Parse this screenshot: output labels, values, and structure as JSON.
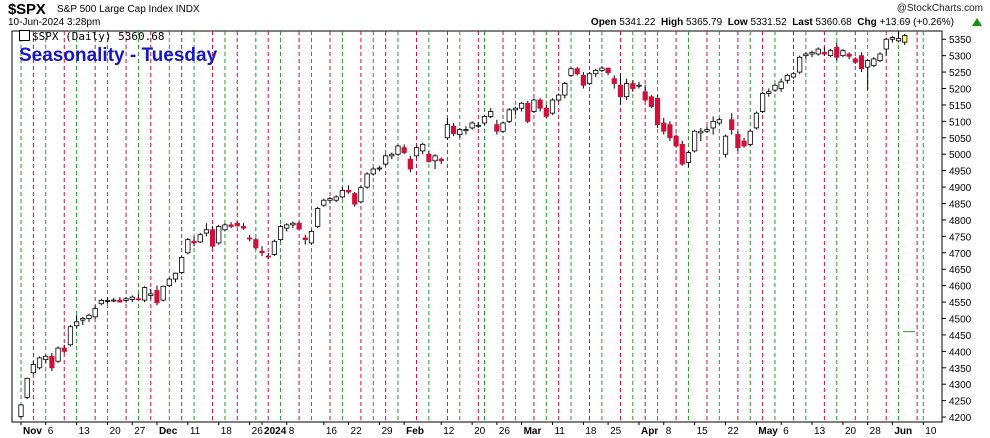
{
  "header": {
    "ticker": "$SPX",
    "description": "S&P 500 Large Cap Index",
    "exchange": "INDX",
    "brand": "@StockCharts.com",
    "date": "10-Jun-2024 3:28pm",
    "open_label": "Open",
    "open": "5341.22",
    "high_label": "High",
    "high": "5365.79",
    "low_label": "Low",
    "low": "5331.52",
    "last_label": "Last",
    "last": "5360.68",
    "chg_label": "Chg",
    "chg": "+13.69 (+0.26%)"
  },
  "legend": {
    "label": "$SPX (Daily) 5360.68"
  },
  "overlay_title": "Seasonality - Tuesday",
  "colors": {
    "up": "#ffffff",
    "down": "#d0103a",
    "outline": "#000000",
    "green_line": "#2a9a2a",
    "red_line": "#d0103a",
    "title": "#1515c8",
    "highlight": "#ffff66"
  },
  "chart_data": {
    "type": "candlestick",
    "title": "Seasonality - Tuesday",
    "series_name": "$SPX (Daily)",
    "y_ticks": [
      4200,
      4250,
      4300,
      4350,
      4400,
      4450,
      4500,
      4550,
      4600,
      4650,
      4700,
      4750,
      4800,
      4850,
      4900,
      4950,
      5000,
      5050,
      5100,
      5150,
      5200,
      5250,
      5300,
      5350
    ],
    "ylim": [
      4185,
      5375
    ],
    "x_labels": [
      "Nov",
      "6",
      "13",
      "20",
      "27",
      "Dec",
      "11",
      "18",
      "26",
      "2024",
      "8",
      "16",
      "22",
      "29",
      "Feb",
      "12",
      "20",
      "26",
      "Mar",
      "11",
      "18",
      "25",
      "Apr",
      "8",
      "15",
      "22",
      "May",
      "6",
      "13",
      "20",
      "28",
      "Jun",
      "10"
    ],
    "x_label_bold": [
      "Nov",
      "Dec",
      "2024",
      "Feb",
      "Mar",
      "Apr",
      "May",
      "Jun"
    ],
    "x_label_days": [
      0,
      4,
      9,
      14,
      18,
      22,
      27,
      32,
      37,
      39,
      43,
      49,
      53,
      58,
      62,
      68,
      73,
      77,
      81,
      86,
      91,
      95,
      100,
      104,
      109,
      114,
      119,
      123,
      128,
      133,
      137,
      141,
      146
    ],
    "green_dashed_days": [
      0,
      4,
      9,
      14,
      19,
      24,
      28,
      33,
      38,
      42,
      47,
      52,
      57,
      61,
      66,
      71,
      75,
      80,
      85,
      89,
      94,
      99,
      103,
      108,
      113,
      118,
      122,
      127,
      132,
      137,
      142,
      146
    ],
    "red_dashed_days": [
      2,
      7,
      12,
      17,
      21,
      26,
      31,
      35,
      40,
      45,
      50,
      55,
      59,
      64,
      69,
      74,
      78,
      83,
      87,
      92,
      97,
      101,
      106,
      111,
      116,
      120,
      125,
      130,
      135,
      140,
      145
    ],
    "candles": [
      {
        "o": 4202,
        "h": 4240,
        "l": 4195,
        "c": 4237
      },
      {
        "o": 4260,
        "h": 4320,
        "l": 4255,
        "c": 4318
      },
      {
        "o": 4335,
        "h": 4370,
        "l": 4330,
        "c": 4360
      },
      {
        "o": 4350,
        "h": 4385,
        "l": 4345,
        "c": 4380
      },
      {
        "o": 4375,
        "h": 4390,
        "l": 4365,
        "c": 4385
      },
      {
        "o": 4385,
        "h": 4395,
        "l": 4340,
        "c": 4350
      },
      {
        "o": 4370,
        "h": 4415,
        "l": 4365,
        "c": 4410
      },
      {
        "o": 4410,
        "h": 4420,
        "l": 4395,
        "c": 4400
      },
      {
        "o": 4420,
        "h": 4480,
        "l": 4415,
        "c": 4475
      },
      {
        "o": 4478,
        "h": 4510,
        "l": 4470,
        "c": 4490
      },
      {
        "o": 4495,
        "h": 4505,
        "l": 4480,
        "c": 4500
      },
      {
        "o": 4500,
        "h": 4515,
        "l": 4490,
        "c": 4510
      },
      {
        "o": 4505,
        "h": 4540,
        "l": 4500,
        "c": 4530
      },
      {
        "o": 4545,
        "h": 4560,
        "l": 4540,
        "c": 4555
      },
      {
        "o": 4555,
        "h": 4565,
        "l": 4545,
        "c": 4555
      },
      {
        "o": 4555,
        "h": 4562,
        "l": 4550,
        "c": 4556
      },
      {
        "o": 4556,
        "h": 4565,
        "l": 4549,
        "c": 4550
      },
      {
        "o": 4555,
        "h": 4565,
        "l": 4548,
        "c": 4560
      },
      {
        "o": 4558,
        "h": 4570,
        "l": 4550,
        "c": 4565
      },
      {
        "o": 4560,
        "h": 4575,
        "l": 4555,
        "c": 4557
      },
      {
        "o": 4556,
        "h": 4598,
        "l": 4550,
        "c": 4594
      },
      {
        "o": 4570,
        "h": 4590,
        "l": 4560,
        "c": 4575
      },
      {
        "o": 4585,
        "h": 4600,
        "l": 4540,
        "c": 4548
      },
      {
        "o": 4556,
        "h": 4600,
        "l": 4552,
        "c": 4598
      },
      {
        "o": 4600,
        "h": 4625,
        "l": 4595,
        "c": 4620
      },
      {
        "o": 4620,
        "h": 4640,
        "l": 4610,
        "c": 4638
      },
      {
        "o": 4640,
        "h": 4690,
        "l": 4635,
        "c": 4686
      },
      {
        "o": 4700,
        "h": 4745,
        "l": 4695,
        "c": 4740
      },
      {
        "o": 4735,
        "h": 4750,
        "l": 4720,
        "c": 4730
      },
      {
        "o": 4733,
        "h": 4760,
        "l": 4730,
        "c": 4755
      },
      {
        "o": 4760,
        "h": 4790,
        "l": 4750,
        "c": 4770
      },
      {
        "o": 4770,
        "h": 4782,
        "l": 4715,
        "c": 4720
      },
      {
        "o": 4730,
        "h": 4785,
        "l": 4725,
        "c": 4780
      },
      {
        "o": 4770,
        "h": 4790,
        "l": 4765,
        "c": 4785
      },
      {
        "o": 4785,
        "h": 4793,
        "l": 4775,
        "c": 4780
      },
      {
        "o": 4790,
        "h": 4795,
        "l": 4780,
        "c": 4782
      },
      {
        "o": 4780,
        "h": 4790,
        "l": 4770,
        "c": 4775
      },
      {
        "o": 4745,
        "h": 4755,
        "l": 4735,
        "c": 4742
      },
      {
        "o": 4740,
        "h": 4745,
        "l": 4710,
        "c": 4715
      },
      {
        "o": 4705,
        "h": 4720,
        "l": 4690,
        "c": 4700
      },
      {
        "o": 4690,
        "h": 4700,
        "l": 4680,
        "c": 4688
      },
      {
        "o": 4695,
        "h": 4740,
        "l": 4690,
        "c": 4735
      },
      {
        "o": 4740,
        "h": 4785,
        "l": 4735,
        "c": 4780
      },
      {
        "o": 4775,
        "h": 4790,
        "l": 4765,
        "c": 4785
      },
      {
        "o": 4785,
        "h": 4795,
        "l": 4775,
        "c": 4790
      },
      {
        "o": 4790,
        "h": 4795,
        "l": 4770,
        "c": 4772
      },
      {
        "o": 4745,
        "h": 4755,
        "l": 4725,
        "c": 4740
      },
      {
        "o": 4730,
        "h": 4770,
        "l": 4725,
        "c": 4765
      },
      {
        "o": 4780,
        "h": 4840,
        "l": 4775,
        "c": 4835
      },
      {
        "o": 4845,
        "h": 4865,
        "l": 4840,
        "c": 4860
      },
      {
        "o": 4860,
        "h": 4870,
        "l": 4850,
        "c": 4865
      },
      {
        "o": 4860,
        "h": 4875,
        "l": 4855,
        "c": 4870
      },
      {
        "o": 4870,
        "h": 4900,
        "l": 4865,
        "c": 4890
      },
      {
        "o": 4890,
        "h": 4905,
        "l": 4880,
        "c": 4885
      },
      {
        "o": 4880,
        "h": 4885,
        "l": 4840,
        "c": 4848
      },
      {
        "o": 4855,
        "h": 4905,
        "l": 4850,
        "c": 4898
      },
      {
        "o": 4900,
        "h": 4945,
        "l": 4895,
        "c": 4940
      },
      {
        "o": 4940,
        "h": 4960,
        "l": 4935,
        "c": 4955
      },
      {
        "o": 4955,
        "h": 4965,
        "l": 4948,
        "c": 4958
      },
      {
        "o": 4970,
        "h": 5000,
        "l": 4965,
        "c": 4995
      },
      {
        "o": 4995,
        "h": 5005,
        "l": 4985,
        "c": 5000
      },
      {
        "o": 5000,
        "h": 5030,
        "l": 4995,
        "c": 5025
      },
      {
        "o": 5020,
        "h": 5030,
        "l": 5000,
        "c": 5005
      },
      {
        "o": 4985,
        "h": 4995,
        "l": 4945,
        "c": 4955
      },
      {
        "o": 4995,
        "h": 5025,
        "l": 4990,
        "c": 5020
      },
      {
        "o": 5010,
        "h": 5035,
        "l": 5000,
        "c": 5030
      },
      {
        "o": 5000,
        "h": 5010,
        "l": 4975,
        "c": 4978
      },
      {
        "o": 4980,
        "h": 5000,
        "l": 4955,
        "c": 4995
      },
      {
        "o": 4985,
        "h": 4990,
        "l": 4970,
        "c": 4980
      },
      {
        "o": 5050,
        "h": 5110,
        "l": 5045,
        "c": 5090
      },
      {
        "o": 5085,
        "h": 5095,
        "l": 5055,
        "c": 5063
      },
      {
        "o": 5060,
        "h": 5080,
        "l": 5050,
        "c": 5075
      },
      {
        "o": 5075,
        "h": 5085,
        "l": 5060,
        "c": 5075
      },
      {
        "o": 5080,
        "h": 5100,
        "l": 5075,
        "c": 5095
      },
      {
        "o": 5085,
        "h": 5098,
        "l": 5080,
        "c": 5088
      },
      {
        "o": 5095,
        "h": 5120,
        "l": 5090,
        "c": 5115
      },
      {
        "o": 5115,
        "h": 5140,
        "l": 5110,
        "c": 5130
      },
      {
        "o": 5090,
        "h": 5105,
        "l": 5060,
        "c": 5070
      },
      {
        "o": 5070,
        "h": 5100,
        "l": 5065,
        "c": 5095
      },
      {
        "o": 5100,
        "h": 5140,
        "l": 5095,
        "c": 5135
      },
      {
        "o": 5135,
        "h": 5145,
        "l": 5120,
        "c": 5140
      },
      {
        "o": 5140,
        "h": 5160,
        "l": 5130,
        "c": 5155
      },
      {
        "o": 5155,
        "h": 5162,
        "l": 5095,
        "c": 5100
      },
      {
        "o": 5130,
        "h": 5170,
        "l": 5125,
        "c": 5165
      },
      {
        "o": 5165,
        "h": 5170,
        "l": 5130,
        "c": 5140
      },
      {
        "o": 5140,
        "h": 5150,
        "l": 5110,
        "c": 5115
      },
      {
        "o": 5125,
        "h": 5170,
        "l": 5120,
        "c": 5165
      },
      {
        "o": 5165,
        "h": 5185,
        "l": 5160,
        "c": 5180
      },
      {
        "o": 5180,
        "h": 5220,
        "l": 5170,
        "c": 5215
      },
      {
        "o": 5240,
        "h": 5265,
        "l": 5235,
        "c": 5260
      },
      {
        "o": 5260,
        "h": 5265,
        "l": 5240,
        "c": 5245
      },
      {
        "o": 5240,
        "h": 5250,
        "l": 5200,
        "c": 5210
      },
      {
        "o": 5215,
        "h": 5250,
        "l": 5210,
        "c": 5245
      },
      {
        "o": 5245,
        "h": 5260,
        "l": 5235,
        "c": 5255
      },
      {
        "o": 5255,
        "h": 5268,
        "l": 5250,
        "c": 5262
      },
      {
        "o": 5262,
        "h": 5264,
        "l": 5240,
        "c": 5248
      },
      {
        "o": 5230,
        "h": 5240,
        "l": 5200,
        "c": 5215
      },
      {
        "o": 5210,
        "h": 5245,
        "l": 5150,
        "c": 5175
      },
      {
        "o": 5175,
        "h": 5230,
        "l": 5165,
        "c": 5215
      },
      {
        "o": 5215,
        "h": 5225,
        "l": 5190,
        "c": 5200
      },
      {
        "o": 5210,
        "h": 5220,
        "l": 5200,
        "c": 5210
      },
      {
        "o": 5190,
        "h": 5210,
        "l": 5160,
        "c": 5165
      },
      {
        "o": 5175,
        "h": 5180,
        "l": 5140,
        "c": 5145
      },
      {
        "o": 5170,
        "h": 5180,
        "l": 5080,
        "c": 5090
      },
      {
        "o": 5095,
        "h": 5110,
        "l": 5060,
        "c": 5070
      },
      {
        "o": 5090,
        "h": 5100,
        "l": 5040,
        "c": 5050
      },
      {
        "o": 5055,
        "h": 5060,
        "l": 5020,
        "c": 5025
      },
      {
        "o": 5030,
        "h": 5040,
        "l": 4965,
        "c": 4970
      },
      {
        "o": 4975,
        "h": 5010,
        "l": 4960,
        "c": 5005
      },
      {
        "o": 5010,
        "h": 5075,
        "l": 5005,
        "c": 5070
      },
      {
        "o": 5065,
        "h": 5080,
        "l": 5040,
        "c": 5070
      },
      {
        "o": 5070,
        "h": 5085,
        "l": 5065,
        "c": 5075
      },
      {
        "o": 5080,
        "h": 5115,
        "l": 5060,
        "c": 5100
      },
      {
        "o": 5095,
        "h": 5110,
        "l": 5090,
        "c": 5105
      },
      {
        "o": 5000,
        "h": 5060,
        "l": 4990,
        "c": 5055
      },
      {
        "o": 5105,
        "h": 5125,
        "l": 5060,
        "c": 5075
      },
      {
        "o": 5060,
        "h": 5070,
        "l": 5010,
        "c": 5020
      },
      {
        "o": 5040,
        "h": 5050,
        "l": 5020,
        "c": 5025
      },
      {
        "o": 5030,
        "h": 5075,
        "l": 5025,
        "c": 5070
      },
      {
        "o": 5080,
        "h": 5130,
        "l": 5075,
        "c": 5125
      },
      {
        "o": 5130,
        "h": 5190,
        "l": 5125,
        "c": 5185
      },
      {
        "o": 5185,
        "h": 5200,
        "l": 5175,
        "c": 5190
      },
      {
        "o": 5195,
        "h": 5215,
        "l": 5190,
        "c": 5210
      },
      {
        "o": 5200,
        "h": 5230,
        "l": 5190,
        "c": 5220
      },
      {
        "o": 5225,
        "h": 5245,
        "l": 5215,
        "c": 5240
      },
      {
        "o": 5235,
        "h": 5250,
        "l": 5230,
        "c": 5245
      },
      {
        "o": 5250,
        "h": 5300,
        "l": 5245,
        "c": 5295
      },
      {
        "o": 5300,
        "h": 5310,
        "l": 5290,
        "c": 5305
      },
      {
        "o": 5305,
        "h": 5315,
        "l": 5295,
        "c": 5310
      },
      {
        "o": 5305,
        "h": 5325,
        "l": 5300,
        "c": 5320
      },
      {
        "o": 5310,
        "h": 5325,
        "l": 5300,
        "c": 5305
      },
      {
        "o": 5300,
        "h": 5320,
        "l": 5295,
        "c": 5315
      },
      {
        "o": 5325,
        "h": 5340,
        "l": 5285,
        "c": 5295
      },
      {
        "o": 5300,
        "h": 5320,
        "l": 5295,
        "c": 5315
      },
      {
        "o": 5305,
        "h": 5310,
        "l": 5290,
        "c": 5298
      },
      {
        "o": 5290,
        "h": 5295,
        "l": 5275,
        "c": 5280
      },
      {
        "o": 5300,
        "h": 5310,
        "l": 5250,
        "c": 5260
      },
      {
        "o": 5265,
        "h": 5290,
        "l": 5195,
        "c": 5285
      },
      {
        "o": 5270,
        "h": 5295,
        "l": 5265,
        "c": 5290
      },
      {
        "o": 5285,
        "h": 5310,
        "l": 5280,
        "c": 5305
      },
      {
        "o": 5320,
        "h": 5355,
        "l": 5300,
        "c": 5350
      },
      {
        "o": 5350,
        "h": 5360,
        "l": 5340,
        "c": 5355
      },
      {
        "o": 5345,
        "h": 5375,
        "l": 5340,
        "c": 5352
      },
      {
        "o": 5341,
        "h": 5366,
        "l": 5332,
        "c": 5361
      }
    ],
    "stray_mark_value": 4460
  }
}
